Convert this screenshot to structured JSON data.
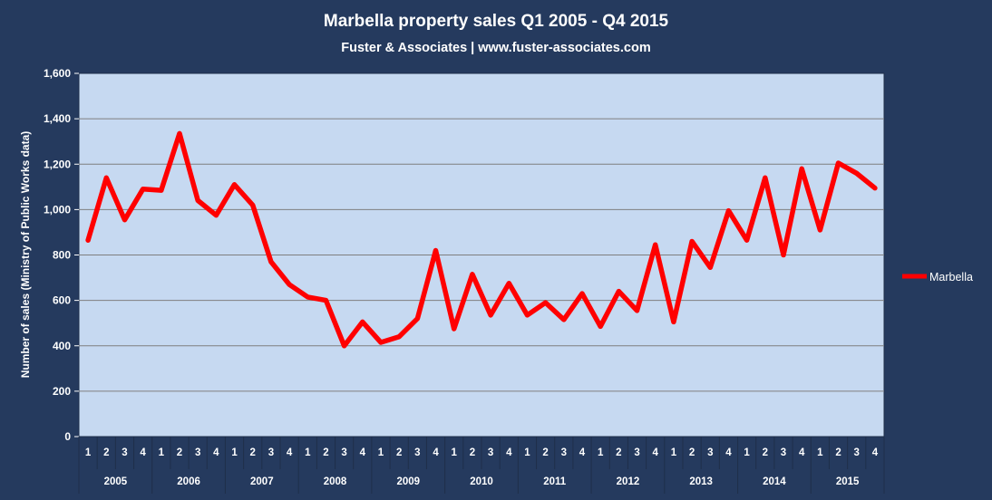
{
  "chart_data": {
    "type": "line",
    "title": "Marbella property sales Q1 2005  - Q4 2015",
    "subtitle": "Fuster & Associates | www.fuster-associates.com",
    "ylabel": "Number of sales (Ministry of Public Works data)",
    "ylim": [
      0,
      1600
    ],
    "yticks": [
      "0",
      "200",
      "400",
      "600",
      "800",
      "1,000",
      "1,200",
      "1,400",
      "1,600"
    ],
    "ytick_values": [
      0,
      200,
      400,
      600,
      800,
      1000,
      1200,
      1400,
      1600
    ],
    "quarters": [
      "1",
      "2",
      "3",
      "4"
    ],
    "years": [
      "2005",
      "2006",
      "2007",
      "2008",
      "2009",
      "2010",
      "2011",
      "2012",
      "2013",
      "2014",
      "2015"
    ],
    "series": [
      {
        "name": "Marbella",
        "color": "#ff0000",
        "values": [
          865,
          1140,
          955,
          1090,
          1085,
          1335,
          1040,
          975,
          1110,
          1020,
          770,
          670,
          615,
          600,
          400,
          505,
          415,
          440,
          520,
          820,
          475,
          715,
          535,
          675,
          535,
          590,
          515,
          630,
          485,
          640,
          555,
          845,
          505,
          860,
          745,
          995,
          865,
          1140,
          800,
          1180,
          910,
          1205,
          1160,
          1095
        ]
      }
    ],
    "grid": true,
    "legend_position": "right",
    "colors": {
      "background": "#253a5e",
      "plot_area": "#c6d9f1",
      "gridline": "#7f7f7f",
      "text": "#ffffff",
      "line": "#ff0000"
    }
  }
}
